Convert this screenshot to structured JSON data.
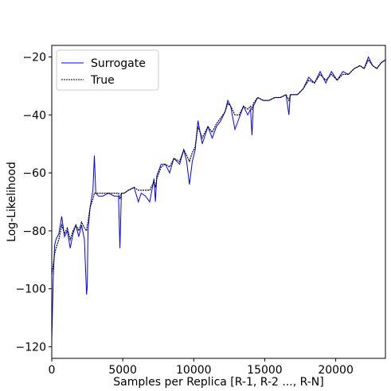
{
  "chart_data": {
    "type": "line",
    "title": "",
    "xlabel": "Samples per Replica [R-1, R-2 ..., R-N]",
    "ylabel": "Log-Likelihood",
    "xlim": [
      0,
      23500
    ],
    "ylim": [
      -124,
      -16
    ],
    "xticks": [
      0,
      5000,
      10000,
      15000,
      20000
    ],
    "xtick_labels": [
      "0",
      "5000",
      "10000",
      "15000",
      "20000"
    ],
    "yticks": [
      -120,
      -100,
      -80,
      -60,
      -40,
      -20
    ],
    "ytick_labels": [
      "−120",
      "−100",
      "−80",
      "−60",
      "−40",
      "−20"
    ],
    "grid": false,
    "legend_position": "top-left",
    "series": [
      {
        "name": "Surrogate",
        "color": "#0000ff",
        "style": "solid",
        "x": [
          0,
          100,
          200,
          300,
          500,
          700,
          900,
          1100,
          1300,
          1500,
          1700,
          1900,
          2100,
          2300,
          2450,
          2500,
          2550,
          2700,
          2900,
          3000,
          3100,
          3300,
          3600,
          4000,
          4400,
          4700,
          4800,
          4900,
          5100,
          5400,
          5800,
          6100,
          6300,
          6600,
          6900,
          7200,
          7300,
          7400,
          7700,
          8000,
          8300,
          8600,
          9000,
          9300,
          9500,
          9700,
          9900,
          10100,
          10300,
          10600,
          11000,
          11300,
          11600,
          11900,
          12200,
          12400,
          12600,
          12900,
          13200,
          13500,
          13800,
          14000,
          14100,
          14200,
          14500,
          14900,
          15300,
          15700,
          16100,
          16500,
          16700,
          16800,
          16900,
          17300,
          17700,
          18100,
          18500,
          18900,
          19300,
          19700,
          20100,
          20500,
          20900,
          21300,
          21700,
          22000,
          22300,
          22600,
          22900,
          23200,
          23500
        ],
        "y": [
          -118,
          -97,
          -85,
          -83,
          -81,
          -75,
          -82,
          -80,
          -86,
          -81,
          -78,
          -82,
          -78,
          -83,
          -102,
          -99,
          -80,
          -72,
          -66,
          -54,
          -67,
          -68,
          -68,
          -67,
          -68,
          -68,
          -86,
          -67,
          -67,
          -66,
          -65,
          -70,
          -67,
          -68,
          -70,
          -62,
          -70,
          -61,
          -57,
          -57,
          -60,
          -55,
          -57,
          -52,
          -56,
          -64,
          -56,
          -52,
          -42,
          -50,
          -44,
          -48,
          -44,
          -42,
          -39,
          -35,
          -37,
          -45,
          -41,
          -37,
          -40,
          -38,
          -47,
          -37,
          -34,
          -35,
          -35,
          -34,
          -34,
          -33,
          -40,
          -33,
          -33,
          -33,
          -31,
          -27,
          -29,
          -25,
          -29,
          -25,
          -28,
          -25,
          -26,
          -24,
          -23,
          -24,
          -20,
          -23,
          -24,
          -22,
          -21
        ]
      },
      {
        "name": "True",
        "color": "#000000",
        "style": "dotted",
        "x": [
          0,
          100,
          200,
          300,
          500,
          700,
          900,
          1100,
          1300,
          1500,
          1700,
          1900,
          2100,
          2300,
          2450,
          2500,
          2550,
          2700,
          2900,
          3000,
          3100,
          3300,
          3600,
          4000,
          4400,
          4700,
          4800,
          4900,
          5100,
          5400,
          5800,
          6100,
          6300,
          6600,
          6900,
          7200,
          7300,
          7400,
          7700,
          8000,
          8300,
          8600,
          9000,
          9300,
          9500,
          9700,
          9900,
          10100,
          10300,
          10600,
          11000,
          11300,
          11600,
          11900,
          12200,
          12400,
          12600,
          12900,
          13200,
          13500,
          13800,
          14000,
          14100,
          14200,
          14500,
          14900,
          15300,
          15700,
          16100,
          16500,
          16700,
          16800,
          16900,
          17300,
          17700,
          18100,
          18500,
          18900,
          19300,
          19700,
          20100,
          20500,
          20900,
          21300,
          21700,
          22000,
          22300,
          22600,
          22900,
          23200,
          23500
        ],
        "y": [
          -95,
          -92,
          -88,
          -86,
          -83,
          -78,
          -81,
          -79,
          -83,
          -80,
          -78,
          -80,
          -77,
          -79,
          -80,
          -78,
          -77,
          -72,
          -69,
          -67,
          -67,
          -67,
          -67,
          -67,
          -67,
          -67,
          -69,
          -67,
          -67,
          -66,
          -65,
          -66,
          -66,
          -66,
          -66,
          -63,
          -65,
          -62,
          -58,
          -57,
          -58,
          -55,
          -56,
          -52,
          -54,
          -56,
          -53,
          -51,
          -44,
          -48,
          -44,
          -46,
          -43,
          -41,
          -39,
          -36,
          -37,
          -40,
          -40,
          -37,
          -38,
          -37,
          -38,
          -36,
          -34,
          -35,
          -35,
          -34,
          -34,
          -33,
          -35,
          -33,
          -33,
          -33,
          -31,
          -28,
          -29,
          -26,
          -28,
          -26,
          -28,
          -26,
          -26,
          -24,
          -23,
          -24,
          -21,
          -23,
          -24,
          -22,
          -21
        ]
      }
    ]
  }
}
